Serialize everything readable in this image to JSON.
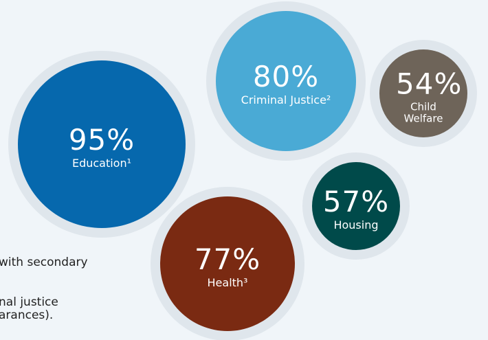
{
  "chart_data": {
    "type": "bubble",
    "categories": [
      "Education¹",
      "Criminal Justice²",
      "Child Welfare",
      "Housing",
      "Health³"
    ],
    "values": [
      95,
      80,
      54,
      57,
      77
    ],
    "value_labels": [
      "95%",
      "80%",
      "54%",
      "57%",
      "77%"
    ],
    "colors": [
      "#0668ad",
      "#4aaad5",
      "#6e6459",
      "#004a4a",
      "#7a2a12"
    ],
    "annotations": [
      "with secondary",
      "nal justice",
      "arances)."
    ]
  }
}
